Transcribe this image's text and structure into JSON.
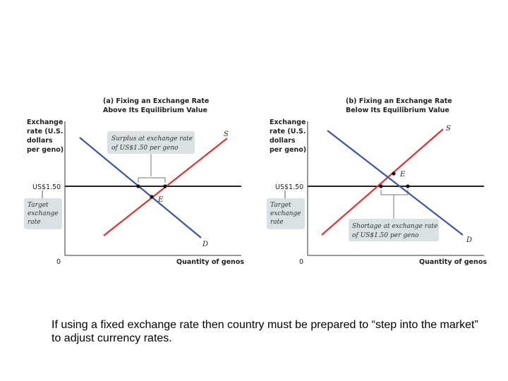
{
  "panels": [
    {
      "title_line1": "(a) Fixing an Exchange Rate",
      "title_line2": "Above Its Equilibrium Value",
      "y_axis_lines": [
        "Exchange",
        "rate (U.S.",
        "dollars",
        "per geno)"
      ],
      "x_axis_label": "Quantity of genos",
      "origin_label": "0",
      "price_label": "US$1.50",
      "target_lines": [
        "Target",
        "exchange",
        "rate"
      ],
      "annotation_lines": [
        "Surplus at exchange rate",
        "of US$1.50 per geno"
      ],
      "supply_label": "S",
      "demand_label": "D",
      "equilibrium_label": "E"
    },
    {
      "title_line1": "(b) Fixing an Exchange Rate",
      "title_line2": "Below Its Equilibrium Value",
      "y_axis_lines": [
        "Exchange",
        "rate (U.S.",
        "dollars",
        "per geno)"
      ],
      "x_axis_label": "Quantity of genos",
      "origin_label": "0",
      "price_label": "US$1.50",
      "target_lines": [
        "Target",
        "exchange",
        "rate"
      ],
      "annotation_lines": [
        "Shortage at exchange rate",
        "of US$1.50 per geno"
      ],
      "supply_label": "S",
      "demand_label": "D",
      "equilibrium_label": "E"
    }
  ],
  "colors": {
    "supply": "#e0312f",
    "demand": "#3a55a4",
    "axis": "#333333",
    "price_line": "#222222",
    "box_fill": "#d9e1e5"
  },
  "caption": "If using a fixed exchange rate then country must be prepared to “step into the market” to adjust currency rates."
}
